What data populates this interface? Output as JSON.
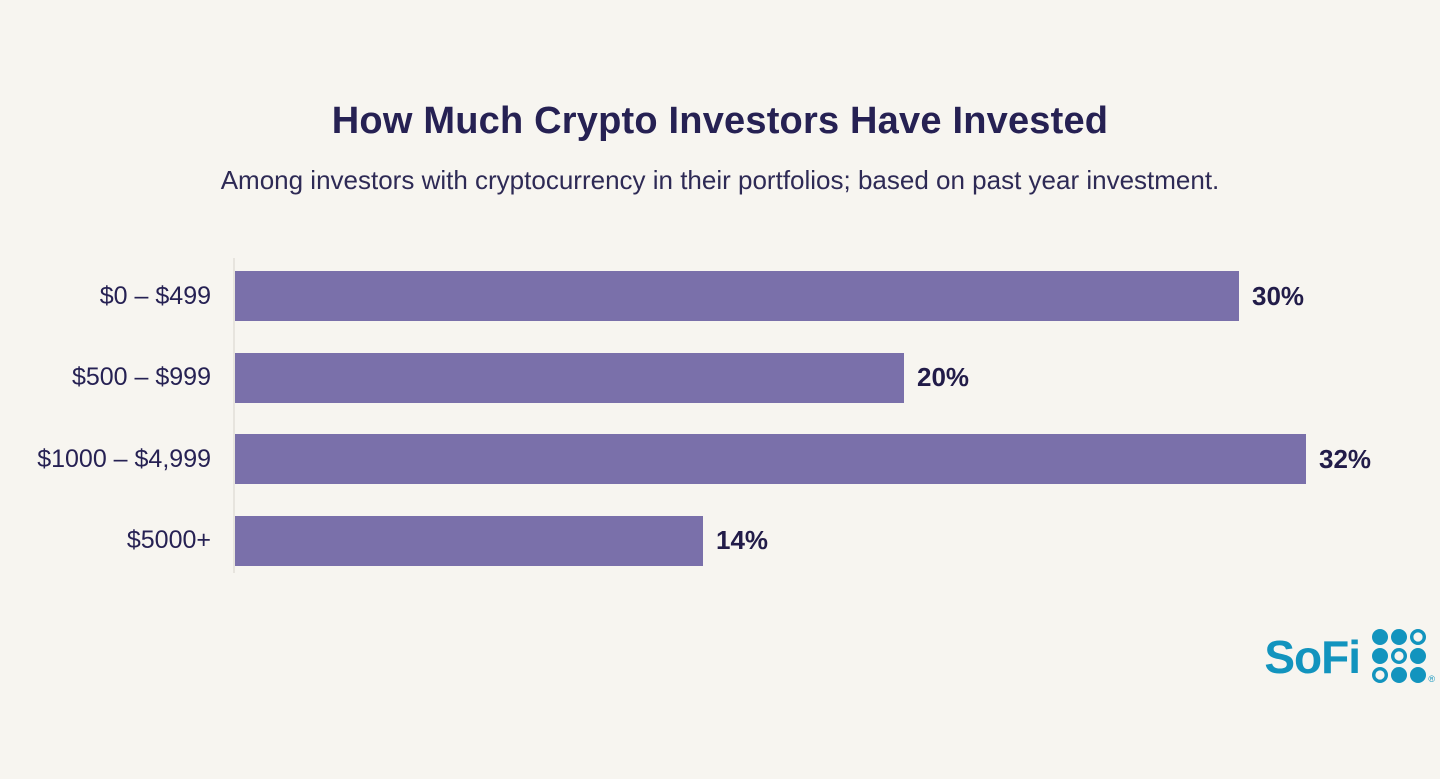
{
  "header": {
    "title": "How Much Crypto Investors Have Invested",
    "subtitle": "Among investors with cryptocurrency in their portfolios; based on past year investment."
  },
  "chart_data": {
    "type": "bar",
    "orientation": "horizontal",
    "title": "How Much Crypto Investors Have Invested",
    "subtitle": "Among investors with cryptocurrency in their portfolios; based on past year investment.",
    "categories": [
      "$0 – $499",
      "$500 – $999",
      "$1000 – $4,999",
      "$5000+"
    ],
    "values": [
      30,
      20,
      32,
      14
    ],
    "value_labels": [
      "30%",
      "20%",
      "32%",
      "14%"
    ],
    "xlabel": "",
    "ylabel": "",
    "xlim": [
      0,
      33
    ],
    "grid": false,
    "legend": "none",
    "bar_color": "#7a70aa",
    "text_color": "#262153",
    "background_color": "#f7f5f0"
  },
  "branding": {
    "logo_text": "SoFi",
    "logo_color": "#1294be",
    "registered_mark": "®"
  }
}
